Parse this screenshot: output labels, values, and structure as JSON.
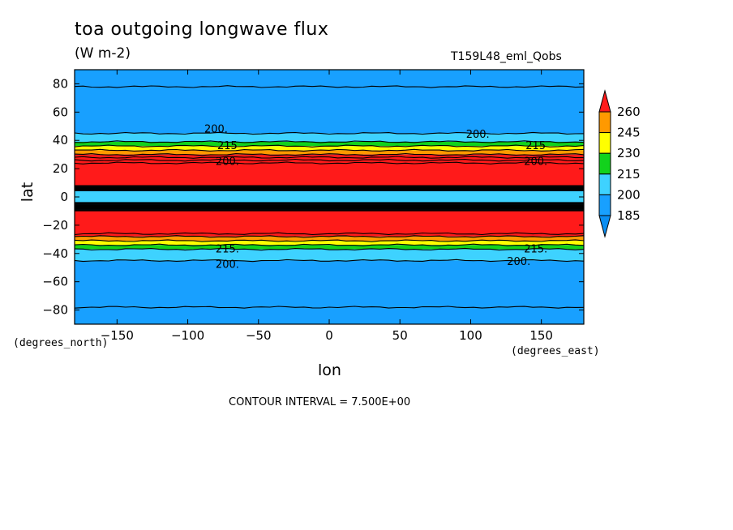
{
  "title": "toa outgoing longwave flux",
  "units": "(W m-2)",
  "run_label": "T159L48_eml_Qobs",
  "contour_interval": "CONTOUR INTERVAL = 7.500E+00",
  "chart_data": {
    "type": "heatmap",
    "title": "toa outgoing longwave flux",
    "xlabel": "lon",
    "ylabel": "lat",
    "x_units": "(degrees_east)",
    "y_units": "(degrees_north)",
    "xlim": [
      -180,
      180
    ],
    "ylim": [
      -90,
      90
    ],
    "x_ticks": [
      -150,
      -100,
      -50,
      0,
      50,
      100,
      150
    ],
    "y_ticks": [
      80,
      60,
      40,
      20,
      0,
      -20,
      -40,
      -60,
      -80
    ],
    "colorbar": {
      "levels": [
        185,
        200,
        215,
        230,
        245,
        260
      ],
      "colors": [
        "#0a8ef2",
        "#18a0ff",
        "#3ed2ff",
        "#12d21c",
        "#ffff00",
        "#ff9900",
        "#ff1a1a"
      ]
    },
    "zonal_bands": [
      {
        "lat_from": 90,
        "lat_to": 45,
        "level": "185-200",
        "color": "#18a0ff"
      },
      {
        "lat_from": 45,
        "lat_to": 39,
        "level": "200-215",
        "color": "#3ed2ff"
      },
      {
        "lat_from": 39,
        "lat_to": 36,
        "level": "215-230",
        "color": "#12d21c"
      },
      {
        "lat_from": 36,
        "lat_to": 33,
        "level": "230-245",
        "color": "#ffff00"
      },
      {
        "lat_from": 33,
        "lat_to": 30,
        "level": "245-260",
        "color": "#ff9900"
      },
      {
        "lat_from": 30,
        "lat_to": 8,
        "level": ">260",
        "color": "#ff1a1a"
      },
      {
        "lat_from": 4,
        "lat_to": -4,
        "level": "200-215",
        "color": "#3ed2ff"
      },
      {
        "lat_from": -10,
        "lat_to": -28,
        "level": ">260",
        "color": "#ff1a1a"
      },
      {
        "lat_from": -28,
        "lat_to": -31,
        "level": "245-260",
        "color": "#ff9900"
      },
      {
        "lat_from": -31,
        "lat_to": -34,
        "level": "230-245",
        "color": "#ffff00"
      },
      {
        "lat_from": -34,
        "lat_to": -37,
        "level": "215-230",
        "color": "#12d21c"
      },
      {
        "lat_from": -37,
        "lat_to": -45,
        "level": "200-215",
        "color": "#3ed2ff"
      },
      {
        "lat_from": -45,
        "lat_to": -90,
        "level": "185-200",
        "color": "#18a0ff"
      }
    ],
    "contour_lines_lat": [
      78,
      45,
      39,
      36,
      33,
      30,
      28,
      26,
      24,
      -26,
      -28,
      -31,
      -34,
      -37,
      -45,
      -78
    ],
    "contour_labels": [
      {
        "text": "200.",
        "lon": -80,
        "lat": 48
      },
      {
        "text": "200.",
        "lon": 105,
        "lat": 44
      },
      {
        "text": "215",
        "lon": -72,
        "lat": 36
      },
      {
        "text": "215",
        "lon": 146,
        "lat": 36
      },
      {
        "text": "200.",
        "lon": -72,
        "lat": 25
      },
      {
        "text": "200.",
        "lon": 146,
        "lat": 25
      },
      {
        "text": "200.",
        "lon": -72,
        "lat": -48
      },
      {
        "text": "200.",
        "lon": 134,
        "lat": -46
      },
      {
        "text": "215.",
        "lon": -72,
        "lat": -37
      },
      {
        "text": "215.",
        "lon": 146,
        "lat": -37
      }
    ]
  }
}
